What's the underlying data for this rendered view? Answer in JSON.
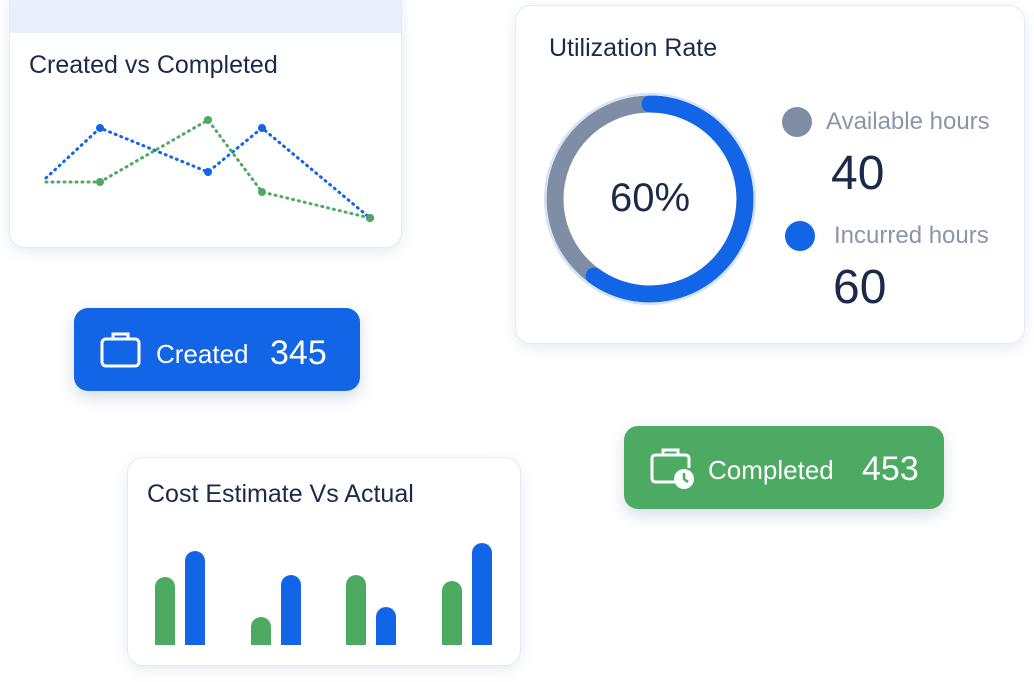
{
  "colors": {
    "blue": "#1265e6",
    "green": "#4caa62",
    "gray": "#7f8ea5",
    "ring_bg": "#d2e1f8",
    "title": "#1b2a4a"
  },
  "line_card": {
    "title": "Created vs Completed"
  },
  "utilization_card": {
    "title": "Utilization Rate",
    "percent_label": "60%",
    "available_label": "Available hours",
    "available_value": "40",
    "incurred_label": "Incurred hours",
    "incurred_value": "60"
  },
  "created_stat": {
    "icon": "briefcase-icon",
    "label": "Created",
    "value": "345"
  },
  "completed_stat": {
    "icon": "briefcase-clock-icon",
    "label": "Completed",
    "value": "453"
  },
  "bar_card": {
    "title": "Cost Estimate Vs Actual"
  },
  "chart_data": [
    {
      "type": "line",
      "title": "Created vs Completed",
      "x": [
        1,
        2,
        3,
        4,
        5,
        6,
        7
      ],
      "series": [
        {
          "values": [
            2.0,
            4.5,
            null,
            2.3,
            4.5,
            null,
            0.0
          ],
          "color": "#1265e6",
          "style": "dotted"
        },
        {
          "values": [
            1.8,
            1.8,
            null,
            4.9,
            1.3,
            null,
            0.0
          ],
          "color": "#4caa62",
          "style": "dotted"
        }
      ],
      "ylim": [
        0,
        6
      ],
      "grid": false
    },
    {
      "type": "pie",
      "title": "Utilization Rate",
      "categories": [
        "Available hours",
        "Incurred hours"
      ],
      "values": [
        40,
        60
      ],
      "colors": [
        "#7f8ea5",
        "#1265e6"
      ],
      "center_label": "60%"
    },
    {
      "type": "bar",
      "title": "Cost Estimate Vs Actual",
      "categories": [
        "1",
        "2",
        "3",
        "4"
      ],
      "series": [
        {
          "values": [
            68,
            28,
            70,
            64
          ],
          "color": "#4caa62"
        },
        {
          "values": [
            94,
            70,
            38,
            102
          ],
          "color": "#1265e6"
        }
      ],
      "ylim": [
        0,
        110
      ],
      "grid": false
    }
  ]
}
